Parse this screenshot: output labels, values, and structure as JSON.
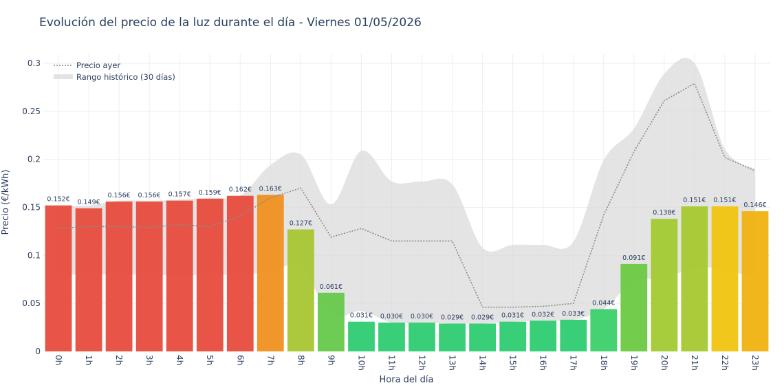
{
  "chart_data": {
    "type": "bar",
    "title": "Evolución del precio de la luz durante el día - Viernes 01/05/2026",
    "xlabel": "Hora del día",
    "ylabel": "Precio (€/kWh)",
    "ylim": [
      0,
      0.31
    ],
    "yticks": [
      0,
      0.05,
      0.1,
      0.15,
      0.2,
      0.25,
      0.3
    ],
    "ytick_labels": [
      "0",
      "0.05",
      "0.1",
      "0.15",
      "0.2",
      "0.25",
      "0.3"
    ],
    "grid": true,
    "legend_position": "top-left",
    "categories": [
      "0h",
      "1h",
      "2h",
      "3h",
      "4h",
      "5h",
      "6h",
      "7h",
      "8h",
      "9h",
      "10h",
      "11h",
      "12h",
      "13h",
      "14h",
      "15h",
      "16h",
      "17h",
      "18h",
      "19h",
      "20h",
      "21h",
      "22h",
      "23h"
    ],
    "values": [
      0.152,
      0.149,
      0.156,
      0.156,
      0.157,
      0.159,
      0.162,
      0.163,
      0.127,
      0.061,
      0.031,
      0.03,
      0.03,
      0.029,
      0.029,
      0.031,
      0.032,
      0.033,
      0.044,
      0.091,
      0.138,
      0.151,
      0.151,
      0.146
    ],
    "bar_labels": [
      "0.152€",
      "0.149€",
      "0.156€",
      "0.156€",
      "0.157€",
      "0.159€",
      "0.162€",
      "0.163€",
      "0.127€",
      "0.061€",
      "0.031€",
      "0.030€",
      "0.030€",
      "0.029€",
      "0.029€",
      "0.031€",
      "0.032€",
      "0.033€",
      "0.044€",
      "0.091€",
      "0.138€",
      "0.151€",
      "0.151€",
      "0.146€"
    ],
    "bar_colors": [
      "#e74c3c",
      "#e74c3c",
      "#e74c3c",
      "#e74c3c",
      "#e74c3c",
      "#e74c3c",
      "#e74c3c",
      "#f0901f",
      "#a8c531",
      "#66c84a",
      "#2ecc71",
      "#2ecc71",
      "#2ecc71",
      "#2ecc71",
      "#2ecc71",
      "#2ecc71",
      "#2ecc71",
      "#2ecc71",
      "#3ccf6a",
      "#6cc941",
      "#a2c931",
      "#a5c930",
      "#f1c40f",
      "#f0b20f"
    ],
    "series": [
      {
        "name": "Precio ayer",
        "style": "dotted",
        "color": "#8a8a8a",
        "values": [
          0.128,
          0.13,
          0.13,
          0.129,
          0.132,
          0.13,
          0.141,
          0.16,
          0.17,
          0.119,
          0.128,
          0.115,
          0.115,
          0.115,
          0.046,
          0.046,
          0.047,
          0.05,
          0.142,
          0.208,
          0.261,
          0.279,
          0.202,
          0.188
        ]
      },
      {
        "name": "Rango histórico (30 días)",
        "style": "band",
        "color": "#d9d9d9",
        "upper": [
          0.152,
          0.152,
          0.157,
          0.157,
          0.158,
          0.16,
          0.162,
          0.194,
          0.205,
          0.153,
          0.209,
          0.177,
          0.177,
          0.174,
          0.108,
          0.111,
          0.111,
          0.114,
          0.199,
          0.232,
          0.289,
          0.3,
          0.211,
          0.19
        ],
        "lower": [
          0.08,
          0.08,
          0.08,
          0.08,
          0.079,
          0.08,
          0.08,
          0.083,
          0.088,
          0.038,
          0.042,
          0.03,
          0.03,
          0.029,
          0.029,
          0.031,
          0.032,
          0.033,
          0.044,
          0.073,
          0.076,
          0.087,
          0.085,
          0.076
        ]
      }
    ]
  }
}
